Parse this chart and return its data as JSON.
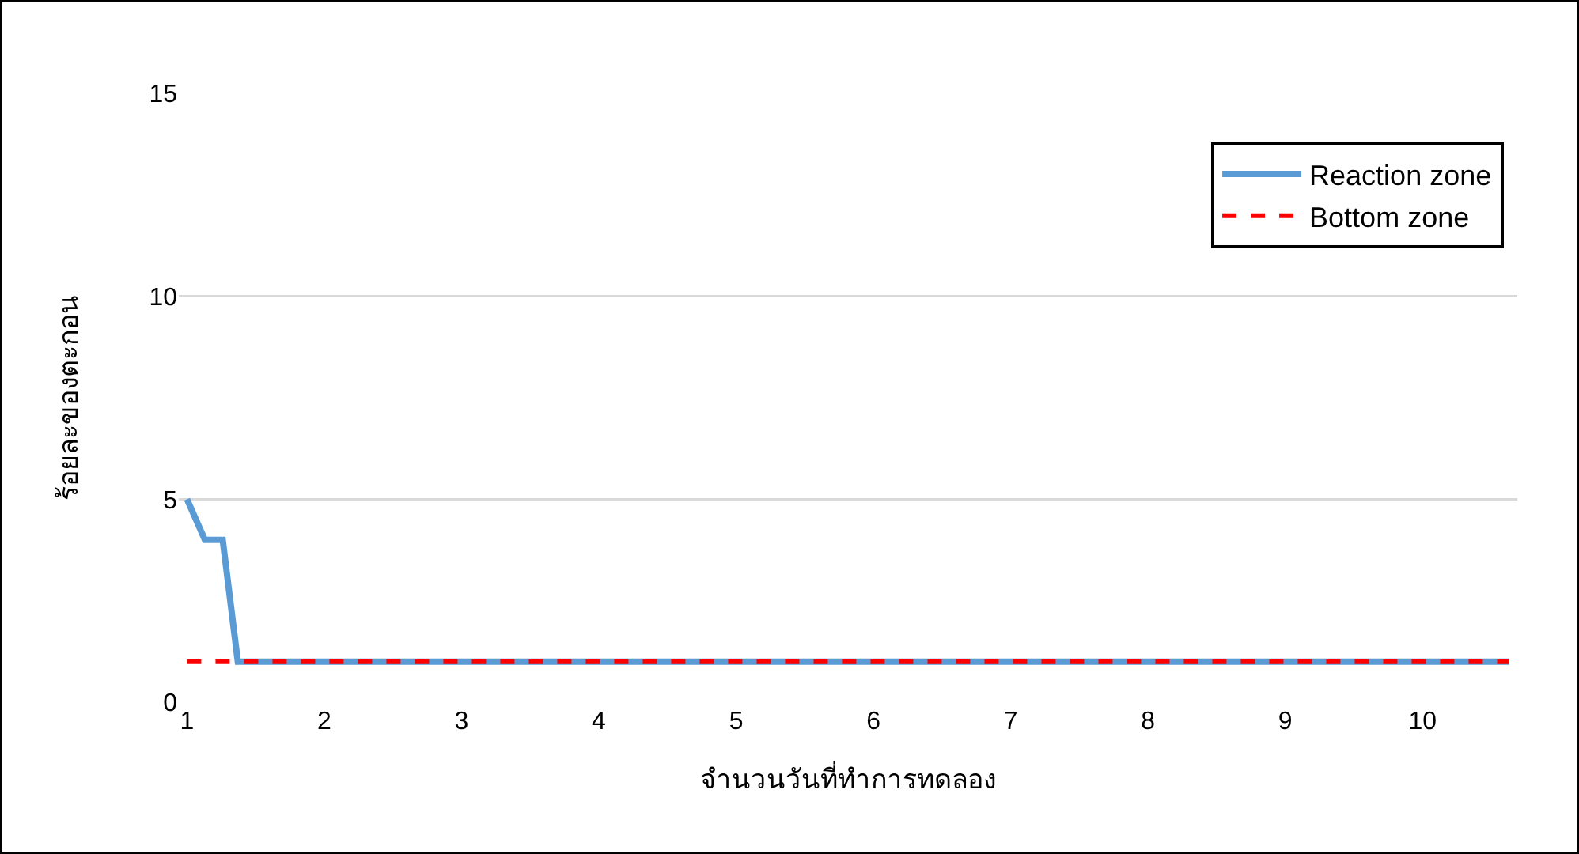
{
  "chart_data": {
    "type": "line",
    "xlabel": "จำนวนวันที่ทำการทดลอง",
    "ylabel": "ร้อยละของตะกอน",
    "xlim": [
      0.94,
      10.69
    ],
    "xticks": [
      1,
      2,
      3,
      4,
      5,
      6,
      7,
      8,
      9,
      10
    ],
    "ylim": [
      0,
      15
    ],
    "yticks": [
      0,
      5,
      10,
      15
    ],
    "grid": "y",
    "legend": "top right",
    "marker": "none",
    "series": [
      {
        "name": "Reaction zone",
        "color": "#5b9bd5",
        "line_style": "solid",
        "x": [
          1,
          1.13,
          1.26,
          1.37,
          10.63
        ],
        "values": [
          5,
          4,
          4,
          1,
          1
        ]
      },
      {
        "name": "Bottom zone",
        "color": "#ff0000",
        "line_style": "dashed",
        "x": [
          1,
          10.63
        ],
        "values": [
          1,
          1
        ]
      }
    ]
  }
}
